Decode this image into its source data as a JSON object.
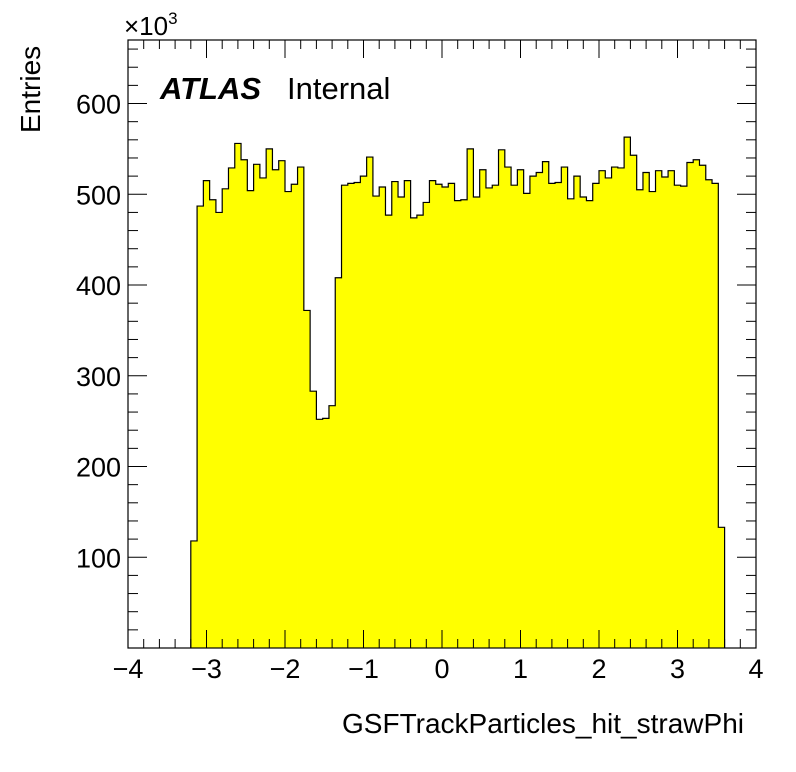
{
  "chart_data": {
    "type": "histogram",
    "xlabel": "GSFTrackParticles_hit_strawPhi",
    "ylabel": "Entries",
    "y_multiplier": "×10",
    "y_multiplier_exp": "3",
    "atlas_label": "ATLAS",
    "atlas_sublabel": "Internal",
    "xlim": [
      -4,
      4
    ],
    "ylim": [
      0,
      670
    ],
    "x_ticks": [
      -4,
      -3,
      -2,
      -1,
      0,
      1,
      2,
      3,
      4
    ],
    "x_tick_labels": [
      "−4",
      "−3",
      "−2",
      "−1",
      "0",
      "1",
      "2",
      "3",
      "4"
    ],
    "y_ticks": [
      100,
      200,
      300,
      400,
      500,
      600
    ],
    "y_tick_labels": [
      "100",
      "200",
      "300",
      "400",
      "500",
      "600"
    ],
    "fill_color": "#ffff00",
    "line_color": "#000000",
    "bin_low": -3.2,
    "bin_width": 0.08,
    "values": [
      118,
      487,
      515,
      494,
      480,
      506,
      529,
      556,
      538,
      504,
      533,
      518,
      550,
      527,
      537,
      503,
      511,
      530,
      372,
      283,
      252,
      253,
      267,
      408,
      510,
      512,
      513,
      520,
      541,
      498,
      508,
      477,
      514,
      497,
      515,
      474,
      477,
      491,
      515,
      511,
      508,
      512,
      493,
      494,
      550,
      497,
      527,
      507,
      510,
      549,
      530,
      510,
      527,
      501,
      520,
      524,
      536,
      512,
      513,
      530,
      495,
      520,
      497,
      493,
      512,
      526,
      518,
      530,
      529,
      563,
      543,
      505,
      524,
      503,
      526,
      519,
      526,
      510,
      509,
      535,
      538,
      532,
      516,
      512,
      133
    ]
  }
}
